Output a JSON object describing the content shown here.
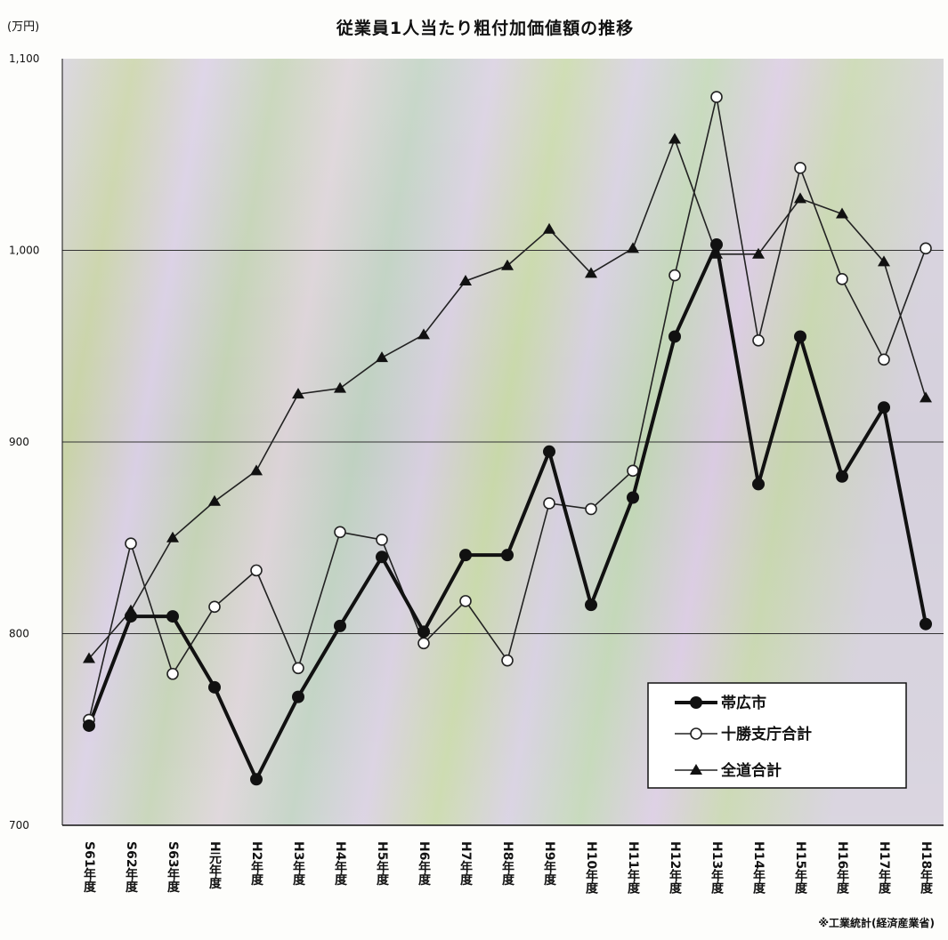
{
  "chart_data": {
    "type": "line",
    "title": "従業員1人当たり粗付加価値額の推移",
    "ylabel": "(万円)",
    "ylim": [
      700,
      1100
    ],
    "yticks": [
      "700",
      "800",
      "900",
      "1,000",
      "1,100"
    ],
    "yticks_values": [
      700,
      800,
      900,
      1000,
      1100
    ],
    "grid": true,
    "legend_position": "bottom-right",
    "categories": [
      "S61年度",
      "S62年度",
      "S63年度",
      "H元年度",
      "H2年度",
      "H3年度",
      "H4年度",
      "H5年度",
      "H6年度",
      "H7年度",
      "H8年度",
      "H9年度",
      "H10年度",
      "H11年度",
      "H12年度",
      "H13年度",
      "H14年度",
      "H15年度",
      "H16年度",
      "H17年度",
      "H18年度"
    ],
    "series": [
      {
        "name": "帯広市",
        "marker": "filled-circle",
        "color": "#111111",
        "values": [
          752,
          809,
          809,
          772,
          724,
          767,
          804,
          840,
          801,
          841,
          841,
          895,
          815,
          871,
          955,
          1003,
          878,
          955,
          882,
          918,
          805
        ]
      },
      {
        "name": "十勝支庁合計",
        "marker": "open-circle",
        "color": "#222222",
        "values": [
          755,
          847,
          779,
          814,
          833,
          782,
          853,
          849,
          795,
          817,
          786,
          868,
          865,
          885,
          987,
          1080,
          953,
          1043,
          985,
          943,
          1001
        ]
      },
      {
        "name": "全道合計",
        "marker": "triangle",
        "color": "#222222",
        "values": [
          787,
          812,
          850,
          869,
          885,
          925,
          928,
          944,
          956,
          984,
          992,
          1011,
          988,
          1001,
          1058,
          998,
          998,
          1027,
          1019,
          994,
          923
        ]
      }
    ],
    "source_note": "※工業統計(経済産業省)"
  }
}
